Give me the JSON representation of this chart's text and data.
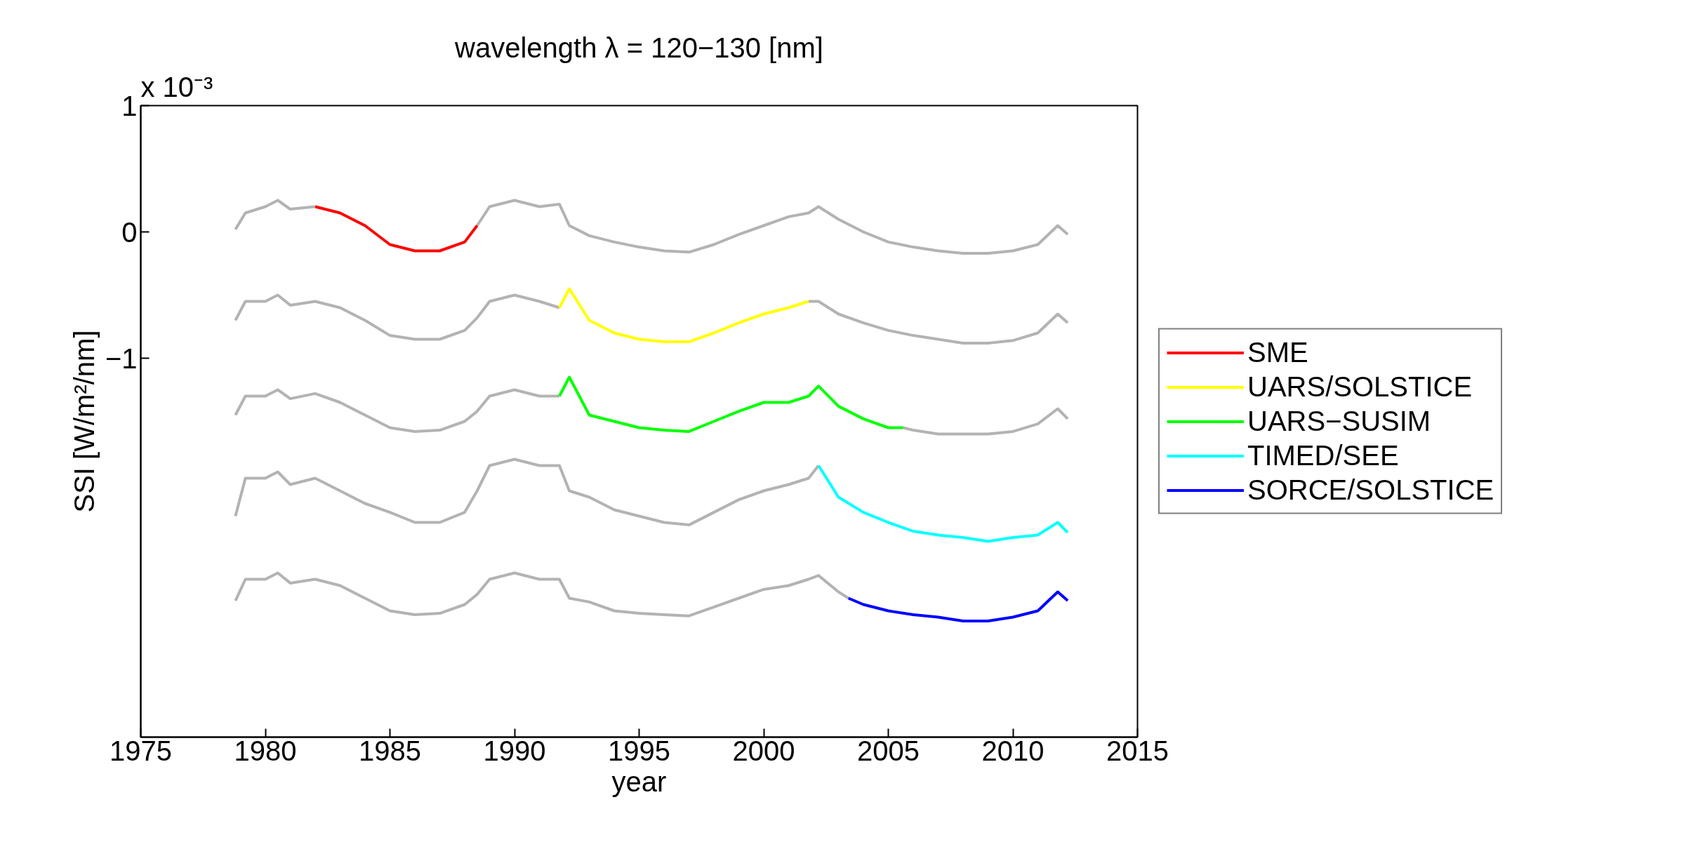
{
  "chart_data": {
    "type": "line",
    "title": "wavelength λ = 120−130 [nm]",
    "xlabel": "year",
    "ylabel": "SSI [W/m²/nm]",
    "annotations": [
      "x 10⁻³"
    ],
    "xlim": [
      1975,
      2015
    ],
    "xticks": [
      1975,
      1980,
      1985,
      1990,
      1995,
      2000,
      2005,
      2010,
      2015
    ],
    "ylim": [
      -4,
      1
    ],
    "yticks": [
      1,
      0,
      {
        "value": -1,
        "label": "−1"
      }
    ],
    "grid": false,
    "legend": "right",
    "line_style": "solid",
    "marker": "none",
    "series": [
      {
        "color": "#b3b3b3",
        "x": [
          1978.8,
          1979.2,
          1980,
          1980.5,
          1981,
          1982,
          1983,
          1984,
          1985,
          1986,
          1987,
          1988,
          1988.5,
          1989,
          1990,
          1991,
          1991.8,
          1992.2,
          1993,
          1994,
          1995,
          1996,
          1997,
          1998,
          1999,
          2000,
          2001,
          2001.8,
          2002.2,
          2003,
          2004,
          2005,
          2006,
          2007,
          2008,
          2009,
          2010,
          2011,
          2011.8,
          2012.2
        ],
        "values": [
          0.02,
          0.15,
          0.2,
          0.25,
          0.18,
          0.2,
          null,
          null,
          null,
          null,
          null,
          null,
          0.05,
          0.2,
          0.25,
          0.2,
          0.22,
          0.05,
          -0.03,
          -0.08,
          -0.12,
          -0.15,
          -0.16,
          -0.1,
          -0.02,
          0.05,
          0.12,
          0.15,
          0.2,
          0.1,
          0.0,
          -0.08,
          -0.12,
          -0.15,
          -0.17,
          -0.17,
          -0.15,
          -0.1,
          0.05,
          -0.02
        ]
      },
      {
        "color": "#b3b3b3",
        "x": [
          1978.8,
          1979.2,
          1980,
          1980.5,
          1981,
          1982,
          1983,
          1984,
          1985,
          1986,
          1987,
          1988,
          1988.5,
          1989,
          1990,
          1991,
          1991.8,
          1992.2,
          1993,
          1994,
          1995,
          1996,
          1997,
          1998,
          1999,
          2000,
          2001,
          2001.8,
          2002.2,
          2003,
          2004,
          2005,
          2006,
          2007,
          2008,
          2009,
          2010,
          2011,
          2011.8,
          2012.2
        ],
        "values": [
          -0.7,
          -0.55,
          -0.55,
          -0.5,
          -0.58,
          -0.55,
          -0.6,
          -0.7,
          -0.82,
          -0.85,
          -0.85,
          -0.78,
          -0.68,
          -0.55,
          -0.5,
          -0.55,
          -0.6,
          null,
          null,
          null,
          null,
          null,
          null,
          null,
          null,
          null,
          null,
          -0.55,
          -0.55,
          -0.65,
          -0.72,
          -0.78,
          -0.82,
          -0.85,
          -0.88,
          -0.88,
          -0.86,
          -0.8,
          -0.65,
          -0.72
        ]
      },
      {
        "color": "#b3b3b3",
        "x": [
          1978.8,
          1979.2,
          1980,
          1980.5,
          1981,
          1982,
          1983,
          1984,
          1985,
          1986,
          1987,
          1988,
          1988.5,
          1989,
          1990,
          1991,
          1991.8,
          1992.2,
          1993,
          1994,
          1995,
          1996,
          1997,
          1998,
          1999,
          2000,
          2001,
          2001.8,
          2002.2,
          2003,
          2004,
          2005,
          2005.6,
          2006,
          2007,
          2008,
          2009,
          2010,
          2011,
          2011.8,
          2012.2
        ],
        "values": [
          -1.45,
          -1.3,
          -1.3,
          -1.25,
          -1.32,
          -1.28,
          -1.35,
          -1.45,
          -1.55,
          -1.58,
          -1.57,
          -1.5,
          -1.42,
          -1.3,
          -1.25,
          -1.3,
          -1.3,
          null,
          null,
          null,
          null,
          null,
          null,
          null,
          null,
          null,
          null,
          null,
          null,
          null,
          null,
          null,
          -1.55,
          -1.57,
          -1.6,
          -1.6,
          -1.6,
          -1.58,
          -1.52,
          -1.4,
          -1.48
        ]
      },
      {
        "color": "#b3b3b3",
        "x": [
          1978.8,
          1979.2,
          1980,
          1980.5,
          1981,
          1982,
          1983,
          1984,
          1985,
          1986,
          1987,
          1988,
          1988.5,
          1989,
          1990,
          1991,
          1991.8,
          1992.2,
          1993,
          1994,
          1995,
          1996,
          1997,
          1998,
          1999,
          2000,
          2001,
          2001.8,
          2002.2
        ],
        "values": [
          -2.25,
          -1.95,
          -1.95,
          -1.9,
          -2.0,
          -1.95,
          -2.05,
          -2.15,
          -2.22,
          -2.3,
          -2.3,
          -2.22,
          -2.05,
          -1.85,
          -1.8,
          -1.85,
          -1.85,
          -2.05,
          -2.1,
          -2.2,
          -2.25,
          -2.3,
          -2.32,
          -2.22,
          -2.12,
          -2.05,
          -2.0,
          -1.95,
          -1.85
        ]
      },
      {
        "color": "#b3b3b3",
        "x": [
          1978.8,
          1979.2,
          1980,
          1980.5,
          1981,
          1982,
          1983,
          1984,
          1985,
          1986,
          1987,
          1988,
          1988.5,
          1989,
          1990,
          1991,
          1991.8,
          1992.2,
          1993,
          1994,
          1995,
          1996,
          1997,
          1998,
          1999,
          2000,
          2001,
          2001.8,
          2002.2,
          2003,
          2003.4
        ],
        "values": [
          -2.92,
          -2.75,
          -2.75,
          -2.7,
          -2.78,
          -2.75,
          -2.8,
          -2.9,
          -3.0,
          -3.03,
          -3.02,
          -2.95,
          -2.87,
          -2.75,
          -2.7,
          -2.75,
          -2.75,
          -2.9,
          -2.93,
          -3.0,
          -3.02,
          -3.03,
          -3.04,
          -2.97,
          -2.9,
          -2.83,
          -2.8,
          -2.75,
          -2.72,
          -2.85,
          -2.9
        ]
      },
      {
        "name": "SME",
        "color": "#ff0000",
        "x": [
          1982,
          1983,
          1984,
          1985,
          1986,
          1987,
          1988,
          1988.5
        ],
        "values": [
          0.2,
          0.15,
          0.05,
          -0.1,
          -0.15,
          -0.15,
          -0.08,
          0.05
        ]
      },
      {
        "name": "UARS/SOLSTICE",
        "color": "#ffff00",
        "x": [
          1991.8,
          1992.2,
          1993,
          1994,
          1995,
          1996,
          1997,
          1998,
          1999,
          2000,
          2001,
          2001.8
        ],
        "values": [
          -0.6,
          -0.45,
          -0.7,
          -0.8,
          -0.85,
          -0.87,
          -0.87,
          -0.8,
          -0.72,
          -0.65,
          -0.6,
          -0.55
        ]
      },
      {
        "name": "UARS−SUSIM",
        "color": "#00ff00",
        "x": [
          1991.8,
          1992.2,
          1993,
          1994,
          1995,
          1996,
          1997,
          1998,
          1999,
          2000,
          2001,
          2001.8,
          2002.2,
          2003,
          2004,
          2005,
          2005.6
        ],
        "values": [
          -1.3,
          -1.15,
          -1.45,
          -1.5,
          -1.55,
          -1.57,
          -1.58,
          -1.5,
          -1.42,
          -1.35,
          -1.35,
          -1.3,
          -1.22,
          -1.38,
          -1.48,
          -1.55,
          -1.55
        ]
      },
      {
        "name": "TIMED/SEE",
        "color": "#00ffff",
        "x": [
          2002.2,
          2003,
          2004,
          2005,
          2006,
          2007,
          2008,
          2009,
          2010,
          2011,
          2011.8,
          2012.2
        ],
        "values": [
          -1.85,
          -2.1,
          -2.22,
          -2.3,
          -2.37,
          -2.4,
          -2.42,
          -2.45,
          -2.42,
          -2.4,
          -2.3,
          -2.38
        ]
      },
      {
        "name": "SORCE/SOLSTICE",
        "color": "#0000ff",
        "x": [
          2003.4,
          2004,
          2005,
          2006,
          2007,
          2008,
          2009,
          2010,
          2011,
          2011.8,
          2012.2
        ],
        "values": [
          -2.9,
          -2.95,
          -3.0,
          -3.03,
          -3.05,
          -3.08,
          -3.08,
          -3.05,
          -3.0,
          -2.85,
          -2.92
        ]
      }
    ]
  }
}
